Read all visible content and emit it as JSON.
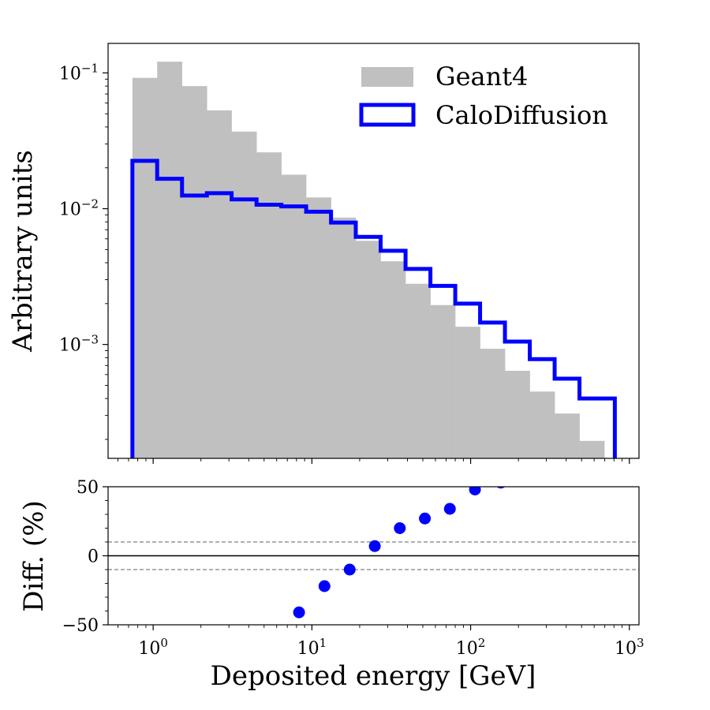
{
  "chart_data": {
    "type": "histogram",
    "xlabel": "Deposited energy [GeV]",
    "x_scale": "log",
    "xlim": [
      0.52,
      1150
    ],
    "x_ticks": [
      {
        "value": 1,
        "base": "10",
        "exp": "0"
      },
      {
        "value": 10,
        "base": "10",
        "exp": "1"
      },
      {
        "value": 100,
        "base": "10",
        "exp": "2"
      },
      {
        "value": 1000,
        "base": "10",
        "exp": "3"
      }
    ],
    "bin_edges": [
      0.74,
      1.06,
      1.52,
      2.18,
      3.12,
      4.48,
      6.42,
      9.2,
      13.2,
      18.9,
      27.1,
      38.9,
      55.8,
      80.0,
      114.7,
      164.5,
      235.9,
      338.3,
      485.1,
      695.7,
      810.0
    ],
    "panels": [
      {
        "ylabel": "Arbitrary units",
        "y_scale": "log",
        "ylim": [
          0.000145,
          0.165
        ],
        "y_ticks": [
          {
            "value": 0.1,
            "base": "10",
            "exp": "−1"
          },
          {
            "value": 0.01,
            "base": "10",
            "exp": "−2"
          },
          {
            "value": 0.001,
            "base": "10",
            "exp": "−3"
          }
        ],
        "series": [
          {
            "name": "Geant4",
            "style": "filled",
            "color": "#c0c0c0",
            "values": [
              0.092,
              0.121,
              0.08,
              0.053,
              0.037,
              0.026,
              0.0178,
              0.0121,
              0.0086,
              0.0058,
              0.0041,
              0.0028,
              0.00195,
              0.00135,
              0.00093,
              0.00064,
              0.00045,
              0.00031,
              0.000195,
              0.000146
            ]
          },
          {
            "name": "CaloDiffusion",
            "style": "step",
            "color": "#0000ff",
            "values": [
              0.0225,
              0.0166,
              0.0125,
              0.013,
              0.0117,
              0.0107,
              0.0104,
              0.0095,
              0.0079,
              0.0062,
              0.0049,
              0.0036,
              0.0027,
              0.002,
              0.00145,
              0.00105,
              0.00078,
              0.00056,
              0.0004,
              0.0004
            ]
          }
        ],
        "legend_position": "top-right"
      },
      {
        "ylabel": "Diff. (%)",
        "y_scale": "linear",
        "ylim": [
          -50,
          50
        ],
        "y_ticks": [
          {
            "value": 50,
            "label": "50"
          },
          {
            "value": 0,
            "label": "0"
          },
          {
            "value": -50,
            "label": "−50"
          }
        ],
        "reference_lines": [
          {
            "y": 0,
            "style": "solid",
            "color": "#000000"
          },
          {
            "y": 10,
            "style": "dashed",
            "color": "#808080"
          },
          {
            "y": -10,
            "style": "dashed",
            "color": "#808080"
          }
        ],
        "points": {
          "color": "#0000ff",
          "x": [
            8.3,
            12.0,
            17.3,
            24.9,
            35.8,
            51.5,
            74.0,
            106.5,
            155.0
          ],
          "y": [
            -41,
            -22,
            -10,
            7,
            20,
            27,
            34,
            48,
            53
          ]
        }
      }
    ]
  }
}
